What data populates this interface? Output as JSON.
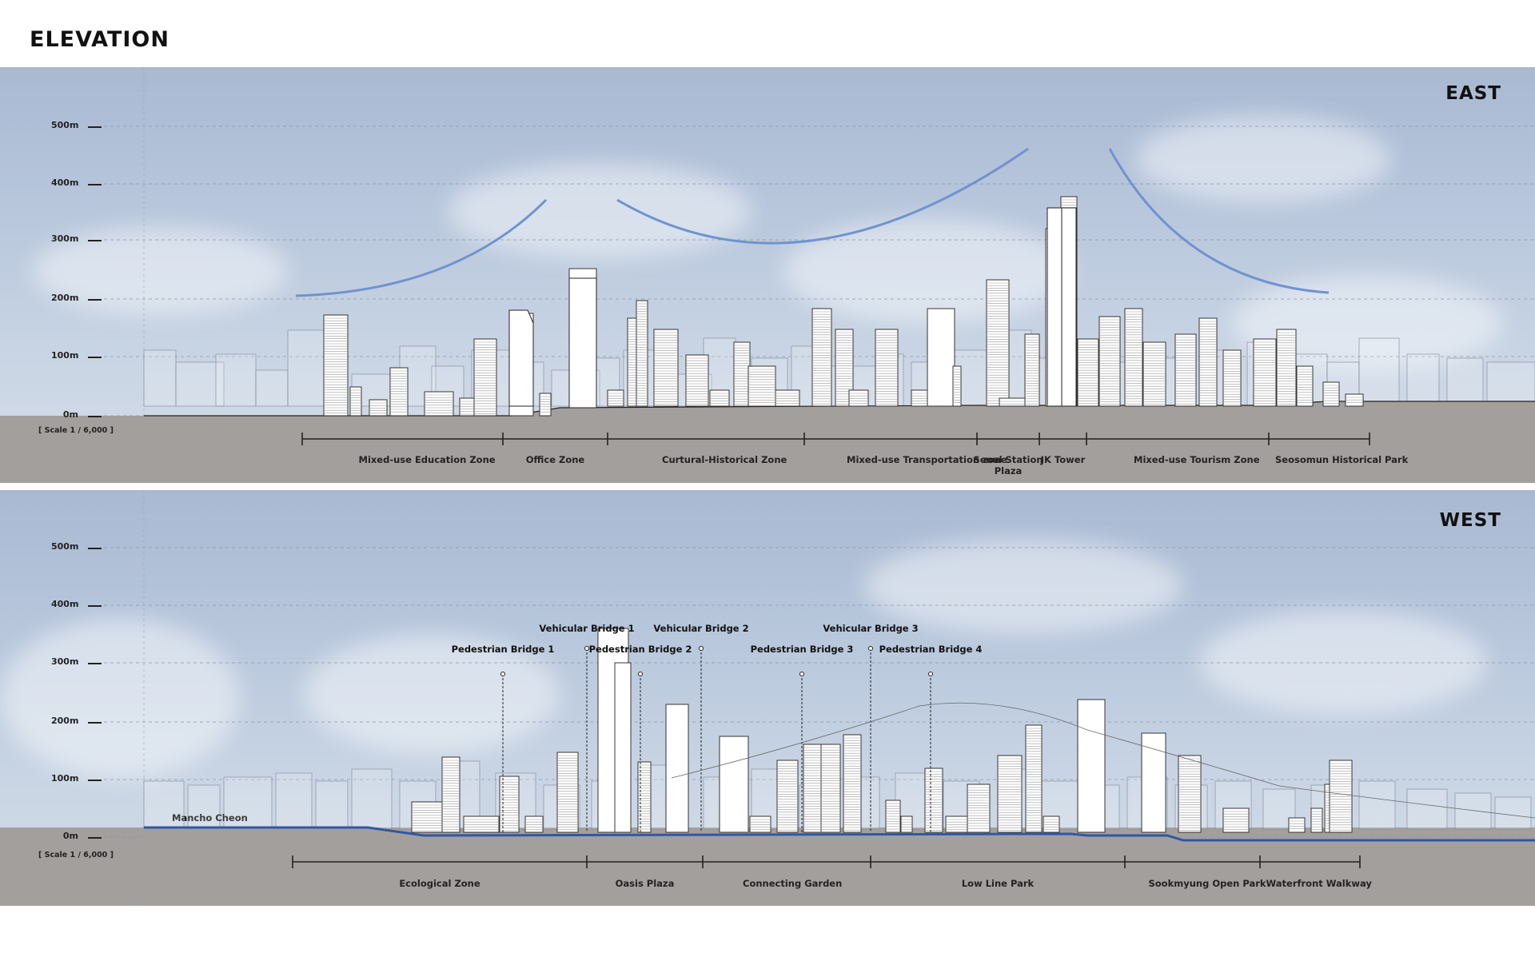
{
  "page": {
    "title": "ELEVATION"
  },
  "scale_ticks": [
    "500m",
    "400m",
    "300m",
    "200m",
    "100m",
    "0m"
  ],
  "scale_note": "[ Scale 1 / 6,000 ]",
  "east": {
    "label": "EAST",
    "zones": [
      {
        "label": "Mixed-use Education Zone"
      },
      {
        "label": "Office Zone"
      },
      {
        "label": "Curtural-Historical Zone"
      },
      {
        "label": "Mixed-use Transportation zone"
      },
      {
        "label": "Seoul Station Plaza"
      },
      {
        "label": "JK Tower"
      },
      {
        "label": "Mixed-use Tourism Zone"
      },
      {
        "label": "Seosomun Historical Park"
      }
    ]
  },
  "west": {
    "label": "WEST",
    "river_label": "Mancho Cheon",
    "zones": [
      {
        "label": "Ecological Zone"
      },
      {
        "label": "Oasis Plaza"
      },
      {
        "label": "Connecting Garden"
      },
      {
        "label": "Low Line Park"
      },
      {
        "label": "Sookmyung Open Park"
      },
      {
        "label": "Waterfront Walkway"
      }
    ],
    "callouts": [
      {
        "label": "Vehicular Bridge 1"
      },
      {
        "label": "Vehicular Bridge 2"
      },
      {
        "label": "Vehicular Bridge 3"
      },
      {
        "label": "Pedestrian Bridge 1"
      },
      {
        "label": "Pedestrian Bridge 2"
      },
      {
        "label": "Pedestrian Bridge 3"
      },
      {
        "label": "Pedestrian Bridge 4"
      }
    ]
  },
  "colors": {
    "sky": "#b8c7dc",
    "ground": "#a39f9d",
    "arc": "#6f93cf",
    "river": "#2f58a6",
    "building_fill": "#ffffff",
    "building_stroke": "#333333"
  }
}
